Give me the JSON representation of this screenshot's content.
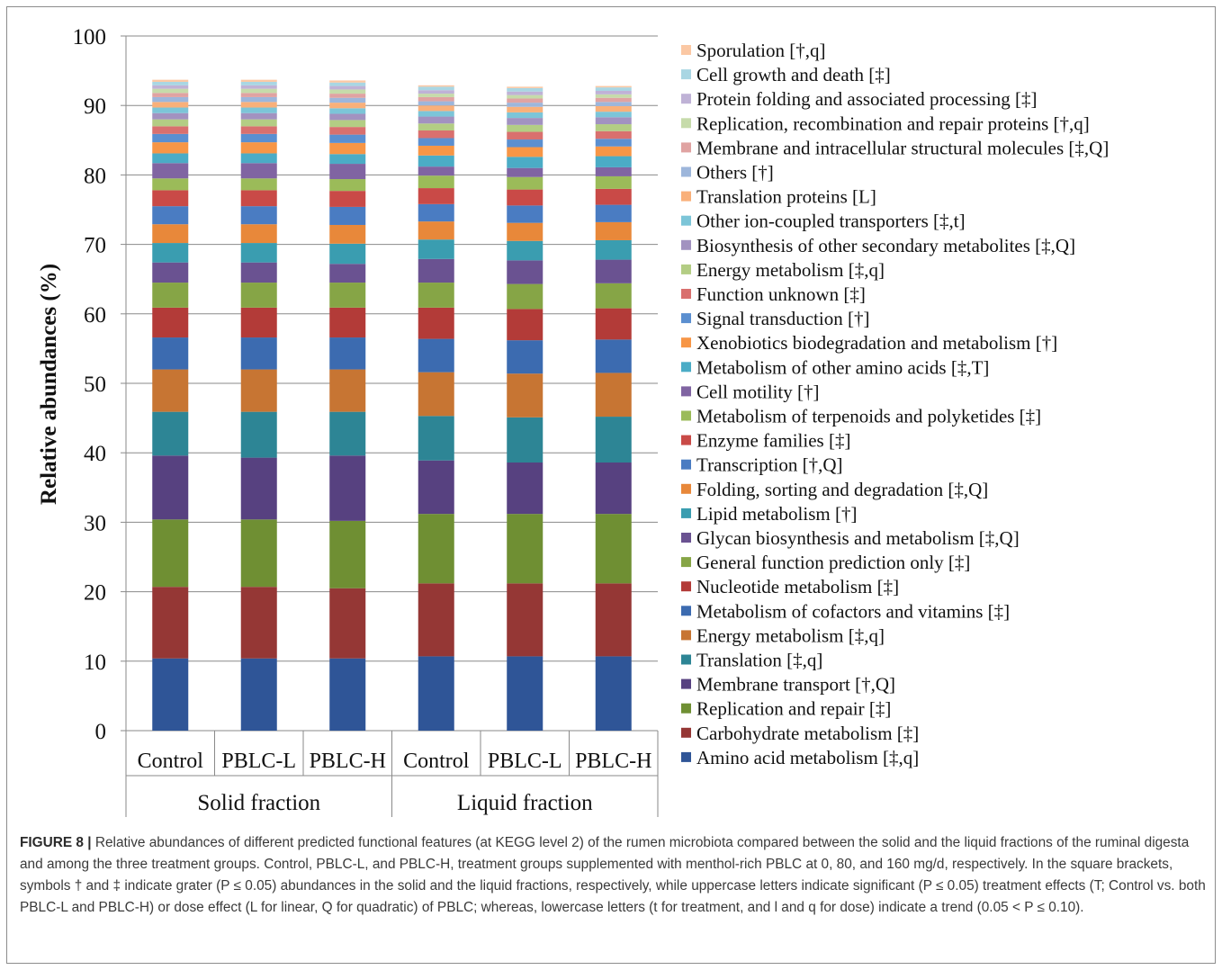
{
  "chart_data": {
    "type": "bar",
    "stacked": true,
    "ylabel": "Relative abundances (%)",
    "xlabel": "",
    "ylim": [
      0,
      100
    ],
    "yticks": [
      0,
      10,
      20,
      30,
      40,
      50,
      60,
      70,
      80,
      90,
      100
    ],
    "grid": "horizontal",
    "legend_position": "right",
    "categories": [
      "Control",
      "PBLC-L",
      "PBLC-H",
      "Control",
      "PBLC-L",
      "PBLC-H"
    ],
    "groups": [
      {
        "label": "Solid fraction",
        "span": 3
      },
      {
        "label": "Liquid fraction",
        "span": 3
      }
    ],
    "series": [
      {
        "name": "Amino acid metabolism [‡,q]",
        "color": "#2f5597",
        "values": [
          10.4,
          10.4,
          10.4,
          10.7,
          10.7,
          10.7
        ]
      },
      {
        "name": "Carbohydrate metabolism [‡]",
        "color": "#953735",
        "values": [
          10.3,
          10.3,
          10.1,
          10.5,
          10.5,
          10.5
        ]
      },
      {
        "name": "Replication and repair [‡]",
        "color": "#6f8f33",
        "values": [
          9.7,
          9.7,
          9.7,
          10.0,
          10.0,
          10.0
        ]
      },
      {
        "name": "Membrane transport [†,Q]",
        "color": "#574180",
        "values": [
          9.2,
          8.9,
          9.4,
          7.7,
          7.4,
          7.4
        ]
      },
      {
        "name": "Translation [‡,q]",
        "color": "#2d8595",
        "values": [
          6.3,
          6.6,
          6.3,
          6.4,
          6.5,
          6.6
        ]
      },
      {
        "name": "Energy metabolism [‡,q]",
        "color": "#c77533",
        "values": [
          6.1,
          6.1,
          6.1,
          6.3,
          6.3,
          6.3
        ]
      },
      {
        "name": "Metabolism of cofactors and vitamins [‡]",
        "color": "#3c6bb0",
        "values": [
          4.6,
          4.6,
          4.6,
          4.8,
          4.8,
          4.8
        ]
      },
      {
        "name": "Nucleotide metabolism [‡]",
        "color": "#b33b38",
        "values": [
          4.3,
          4.3,
          4.3,
          4.5,
          4.5,
          4.5
        ]
      },
      {
        "name": "General function prediction only [‡]",
        "color": "#86a546",
        "values": [
          3.6,
          3.6,
          3.6,
          3.6,
          3.6,
          3.6
        ]
      },
      {
        "name": "Glycan biosynthesis and metabolism [‡,Q]",
        "color": "#6a5291",
        "values": [
          2.9,
          2.9,
          2.7,
          3.4,
          3.4,
          3.4
        ]
      },
      {
        "name": "Lipid metabolism [†]",
        "color": "#3a9db0",
        "values": [
          2.8,
          2.8,
          2.9,
          2.8,
          2.8,
          2.8
        ]
      },
      {
        "name": "Folding, sorting and degradation [‡,Q]",
        "color": "#e8883a",
        "values": [
          2.7,
          2.7,
          2.7,
          2.6,
          2.6,
          2.6
        ]
      },
      {
        "name": "Transcription [†,Q]",
        "color": "#4a7cc2",
        "values": [
          2.6,
          2.6,
          2.6,
          2.5,
          2.5,
          2.5
        ]
      },
      {
        "name": "Enzyme families [‡]",
        "color": "#c94a47",
        "values": [
          2.3,
          2.3,
          2.3,
          2.3,
          2.3,
          2.3
        ]
      },
      {
        "name": "Metabolism of terpenoids and polyketides [‡]",
        "color": "#9bbb59",
        "values": [
          1.7,
          1.7,
          1.7,
          1.8,
          1.8,
          1.8
        ]
      },
      {
        "name": "Cell motility [†]",
        "color": "#8064a2",
        "values": [
          2.2,
          2.2,
          2.2,
          1.3,
          1.3,
          1.3
        ]
      },
      {
        "name": "Metabolism of other amino acids [‡,T]",
        "color": "#4bacc6",
        "values": [
          1.4,
          1.4,
          1.4,
          1.6,
          1.6,
          1.6
        ]
      },
      {
        "name": "Xenobiotics biodegradation and metabolism [†]",
        "color": "#f79646",
        "values": [
          1.6,
          1.6,
          1.6,
          1.4,
          1.4,
          1.4
        ]
      },
      {
        "name": "Signal transduction [†]",
        "color": "#5b8fd0",
        "values": [
          1.2,
          1.2,
          1.2,
          1.1,
          1.1,
          1.1
        ]
      },
      {
        "name": "Function unknown [‡]",
        "color": "#d9706e",
        "values": [
          1.1,
          1.1,
          1.1,
          1.1,
          1.1,
          1.1
        ]
      },
      {
        "name": "Energy metabolism [‡,q]",
        "color": "#b3cd84",
        "values": [
          1.0,
          1.0,
          1.0,
          1.0,
          1.0,
          1.0
        ]
      },
      {
        "name": "Biosynthesis of other secondary metabolites [‡,Q]",
        "color": "#a292c0",
        "values": [
          0.9,
          0.9,
          0.9,
          1.0,
          1.0,
          1.0
        ]
      },
      {
        "name": "Other ion-coupled transporters [‡,t]",
        "color": "#7cc5d8",
        "values": [
          0.8,
          0.8,
          0.8,
          0.8,
          0.8,
          0.8
        ]
      },
      {
        "name": "Translation proteins [L]",
        "color": "#f9b07a",
        "values": [
          0.8,
          0.8,
          0.8,
          0.8,
          0.8,
          0.8
        ]
      },
      {
        "name": "Others [†]",
        "color": "#9db6db",
        "values": [
          0.7,
          0.7,
          0.7,
          0.6,
          0.6,
          0.6
        ]
      },
      {
        "name": "Membrane and intracellular structural molecules [‡,Q]",
        "color": "#e0a3a2",
        "values": [
          0.6,
          0.6,
          0.6,
          0.6,
          0.6,
          0.6
        ]
      },
      {
        "name": "Replication, recombination and repair proteins [†,q]",
        "color": "#c6dbaa",
        "values": [
          0.6,
          0.6,
          0.6,
          0.5,
          0.5,
          0.5
        ]
      },
      {
        "name": "Protein folding and associated processing [‡]",
        "color": "#bfb2d6",
        "values": [
          0.5,
          0.5,
          0.5,
          0.5,
          0.5,
          0.5
        ]
      },
      {
        "name": "Cell growth and death [‡]",
        "color": "#a9d6e3",
        "values": [
          0.5,
          0.5,
          0.5,
          0.5,
          0.5,
          0.5
        ]
      },
      {
        "name": "Sporulation [†,q]",
        "color": "#fbc8a4",
        "values": [
          0.3,
          0.3,
          0.3,
          0.2,
          0.2,
          0.2
        ]
      }
    ]
  },
  "caption": {
    "label": "FIGURE 8",
    "separator": "|",
    "text": " Relative abundances of different predicted functional features (at KEGG level 2) of the rumen microbiota compared between the solid and the liquid fractions of the ruminal digesta and among the three treatment groups. Control, PBLC-L, and PBLC-H, treatment groups supplemented with menthol-rich PBLC at 0, 80, and 160 mg/d, respectively. In the square brackets, symbols † and ‡ indicate grater (P ≤ 0.05) abundances in the solid and the liquid fractions, respectively, while uppercase letters indicate significant (P ≤ 0.05) treatment effects (T; Control vs. both PBLC-L and PBLC-H) or dose effect (L for linear, Q for quadratic) of PBLC; whereas, lowercase letters (t for treatment, and l and q for dose) indicate a trend (0.05 < P ≤ 0.10)."
  }
}
